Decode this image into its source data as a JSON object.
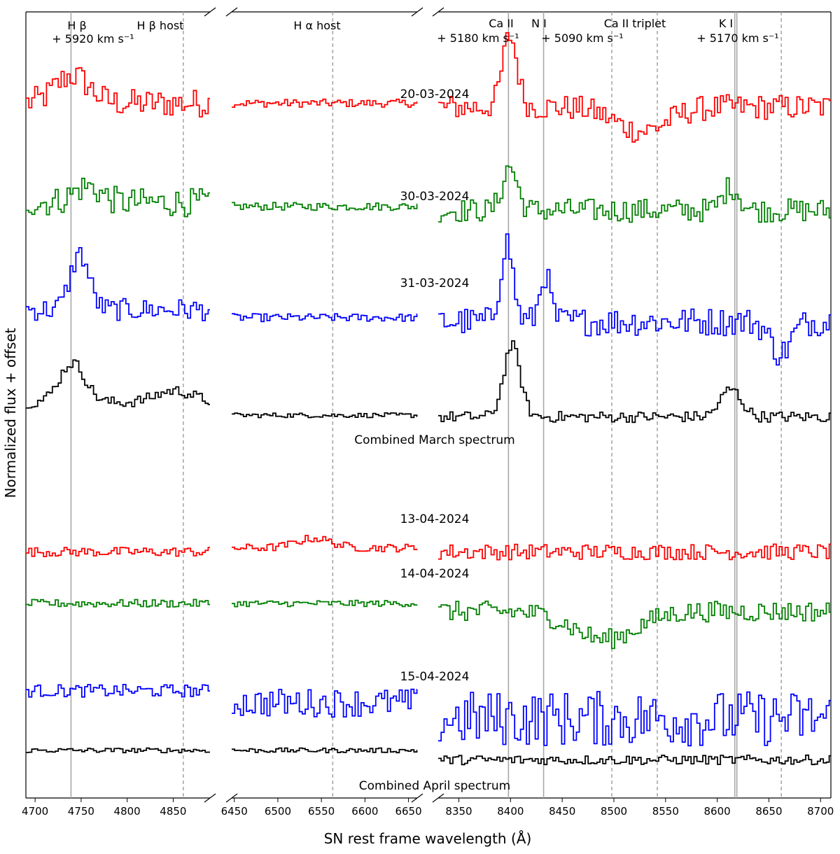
{
  "chart_data": {
    "type": "line",
    "ylabel": "Normalized flux + offset",
    "xlabel": "SN rest frame wavelength (Å)",
    "panels": [
      {
        "xlim": [
          4690,
          4890
        ],
        "ticks": [
          4700,
          4750,
          4800,
          4850
        ]
      },
      {
        "xlim": [
          6447,
          6660
        ],
        "ticks": [
          6450,
          6500,
          6550,
          6600,
          6650
        ]
      },
      {
        "xlim": [
          8330,
          8710
        ],
        "ticks": [
          8350,
          8400,
          8450,
          8500,
          8550,
          8600,
          8650,
          8700
        ]
      }
    ],
    "lines": [
      {
        "panel": 0,
        "x": 4739,
        "style": "solid"
      },
      {
        "panel": 0,
        "x": 4861,
        "style": "dashed"
      },
      {
        "panel": 1,
        "x": 6563,
        "style": "dashed"
      },
      {
        "panel": 2,
        "x": 8398,
        "style": "solid"
      },
      {
        "panel": 2,
        "x": 8432,
        "style": "solid"
      },
      {
        "panel": 2,
        "x": 8498,
        "style": "dashed"
      },
      {
        "panel": 2,
        "x": 8542,
        "style": "dashed"
      },
      {
        "panel": 2,
        "x": 8617,
        "style": "solid"
      },
      {
        "panel": 2,
        "x": 8619,
        "style": "solid"
      },
      {
        "panel": 2,
        "x": 8662,
        "style": "dashed"
      }
    ],
    "annotations": [
      {
        "id": "hb",
        "text": "H β",
        "sub": "+ 5920  km s⁻¹",
        "panel": 0,
        "x": 4739
      },
      {
        "id": "hbhost",
        "text": "H β host",
        "panel": 0,
        "x": 4836
      },
      {
        "id": "hahost",
        "text": "H α host",
        "panel": 1,
        "x": 6555
      },
      {
        "id": "ca2",
        "text": "Ca II",
        "sub": "+ 5180 km s⁻¹",
        "panel": 2,
        "x": 8372
      },
      {
        "id": "n1",
        "text": "N I",
        "sub": "+ 5090 km s⁻¹",
        "panel": 2,
        "x": 8411
      },
      {
        "id": "catrip",
        "text": "Ca II triplet",
        "panel": 2,
        "x": 8525
      },
      {
        "id": "k1",
        "text": "K I",
        "sub": "+ 5170  km s⁻¹",
        "panel": 2,
        "x": 8612
      }
    ],
    "series": [
      {
        "label": "20-03-2024",
        "color": "#ff0000",
        "offset": 8.3,
        "amp": 0.28,
        "panel_means": [
          0.15,
          0.15,
          0.1
        ],
        "features": [
          [
            0,
            4739,
            0.35,
            18
          ],
          [
            2,
            8398,
            0.9,
            7
          ],
          [
            2,
            8525,
            -0.3,
            25
          ]
        ],
        "noise": [
          0.18,
          0.05,
          0.16
        ]
      },
      {
        "label": "30-03-2024",
        "color": "#008000",
        "offset": 7.1,
        "amp": 0.28,
        "panel_means": [
          0.1,
          0.05,
          0.0
        ],
        "features": [
          [
            0,
            4755,
            0.2,
            15
          ],
          [
            2,
            8398,
            0.55,
            7
          ],
          [
            2,
            8612,
            0.3,
            8
          ]
        ],
        "noise": [
          0.18,
          0.05,
          0.15
        ]
      },
      {
        "label": "31-03-2024",
        "color": "#0000ff",
        "offset": 5.8,
        "amp": 0.28,
        "panel_means": [
          0.05,
          -0.05,
          -0.1
        ],
        "features": [
          [
            0,
            4747,
            0.7,
            10
          ],
          [
            2,
            8395,
            1.0,
            6
          ],
          [
            2,
            8432,
            0.6,
            5
          ],
          [
            2,
            8660,
            -0.4,
            10
          ]
        ],
        "noise": [
          0.14,
          0.05,
          0.18
        ]
      },
      {
        "label": "Combined March spectrum",
        "color": "#000000",
        "offset": 4.6,
        "amp": 0.28,
        "panel_means": [
          0.08,
          -0.08,
          -0.1
        ],
        "features": [
          [
            0,
            4739,
            0.5,
            14
          ],
          [
            0,
            4850,
            0.15,
            20
          ],
          [
            2,
            8400,
            0.9,
            8
          ],
          [
            2,
            8612,
            0.35,
            10
          ]
        ],
        "noise": [
          0.07,
          0.03,
          0.07
        ]
      },
      {
        "label": "13-04-2024",
        "color": "#ff0000",
        "offset": 2.8,
        "amp": 0.28,
        "panel_means": [
          0.0,
          0.05,
          0.0
        ],
        "features": [
          [
            1,
            6540,
            0.12,
            20
          ]
        ],
        "noise": [
          0.06,
          0.05,
          0.1
        ]
      },
      {
        "label": "14-04-2024",
        "color": "#008000",
        "offset": 2.15,
        "amp": 0.28,
        "panel_means": [
          0.0,
          0.0,
          -0.1
        ],
        "features": [
          [
            2,
            8490,
            -0.35,
            30
          ]
        ],
        "noise": [
          0.05,
          0.04,
          0.13
        ]
      },
      {
        "label": "15-04-2024",
        "color": "#0000ff",
        "offset": 1.05,
        "amp": 0.28,
        "panel_means": [
          0.0,
          -0.15,
          -0.35
        ],
        "features": [],
        "noise": [
          0.08,
          0.18,
          0.35
        ]
      },
      {
        "label": "Combined April spectrum",
        "color": "#000000",
        "offset": 0.3,
        "amp": 0.28,
        "panel_means": [
          0.0,
          0.0,
          -0.12
        ],
        "features": [],
        "noise": [
          0.03,
          0.03,
          0.06
        ]
      }
    ]
  }
}
